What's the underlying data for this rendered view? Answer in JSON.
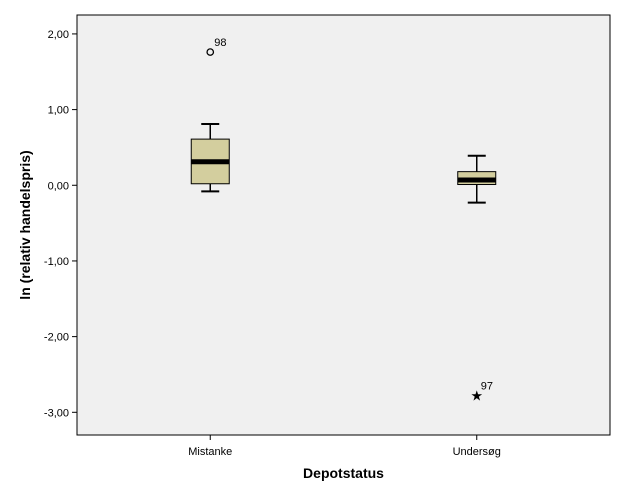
{
  "chart_data": {
    "type": "boxplot",
    "xlabel": "Depotstatus",
    "ylabel": "ln (relativ handelspris)",
    "ylim": [
      -3.3,
      2.25
    ],
    "yticks": [
      2.0,
      1.0,
      0.0,
      -1.0,
      -2.0,
      -3.0
    ],
    "ytick_labels": [
      "2,00",
      "1,00",
      "0,00",
      "-1,00",
      "-2,00",
      "-3,00"
    ],
    "grid": false,
    "colors": {
      "plot_background": "#f0f0f0",
      "box_fill": "#d3ce9e",
      "line": "#000000"
    },
    "categories": [
      "Mistanke",
      "Undersøg"
    ],
    "boxes": [
      {
        "category": "Mistanke",
        "whisker_low": -0.08,
        "q1": 0.02,
        "median": 0.31,
        "q3": 0.61,
        "whisker_high": 0.81,
        "outliers": [
          {
            "label": "98",
            "value": 1.76,
            "kind": "circle"
          }
        ]
      },
      {
        "category": "Undersøg",
        "whisker_low": -0.23,
        "q1": 0.01,
        "median": 0.07,
        "q3": 0.18,
        "whisker_high": 0.39,
        "outliers": [
          {
            "label": "97",
            "value": -2.78,
            "kind": "star"
          }
        ]
      }
    ]
  }
}
